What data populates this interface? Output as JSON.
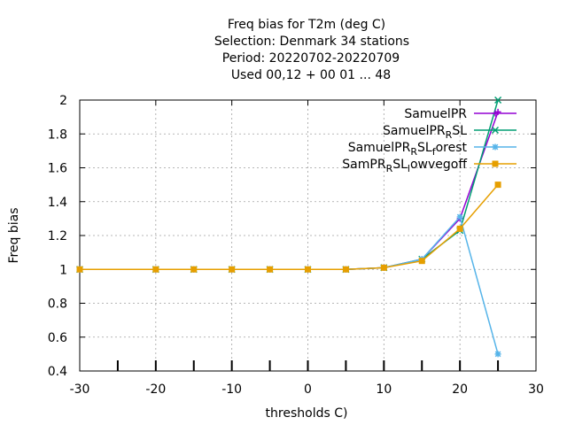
{
  "chart_data": {
    "type": "line",
    "title_lines": [
      "Freq bias  for T2m (deg C)",
      "Selection: Denmark     34 stations",
      "Period: 20220702-20220709",
      "Used  00,12  + 00 01 ... 48"
    ],
    "xlabel": "thresholds C)",
    "ylabel": "Freq bias",
    "xlim": [
      -30,
      30
    ],
    "ylim": [
      0.4,
      2.0
    ],
    "xticks": [
      -30,
      -20,
      -10,
      0,
      10,
      20,
      30
    ],
    "yticks": [
      0.4,
      0.6,
      0.8,
      1.0,
      1.2,
      1.4,
      1.6,
      1.8,
      2.0
    ],
    "xtick_labels": [
      "-30",
      "-20",
      "-10",
      "0",
      "10",
      "20",
      "30"
    ],
    "ytick_labels": [
      "0.4",
      "0.6",
      "0.8",
      "1",
      "1.2",
      "1.4",
      "1.6",
      "1.8",
      "2"
    ],
    "grid": true,
    "legend_position": "top-right",
    "x": [
      -30,
      -20,
      -15,
      -10,
      -5,
      0,
      5,
      10,
      15,
      20,
      25
    ],
    "series": [
      {
        "name_parts": [
          [
            "SamuelPR",
            ""
          ]
        ],
        "color": "#9400d3",
        "marker": "plus",
        "values": [
          1.0,
          1.0,
          1.0,
          1.0,
          1.0,
          1.0,
          1.0,
          1.01,
          1.06,
          1.3,
          1.93
        ]
      },
      {
        "name_parts": [
          [
            "SamuelPR",
            ""
          ],
          [
            "R",
            "sub"
          ],
          [
            "SL",
            ""
          ]
        ],
        "color": "#009e73",
        "marker": "x",
        "values": [
          1.0,
          1.0,
          1.0,
          1.0,
          1.0,
          1.0,
          1.0,
          1.01,
          1.06,
          1.23,
          2.0
        ]
      },
      {
        "name_parts": [
          [
            "SamuelPR",
            ""
          ],
          [
            "R",
            "sub"
          ],
          [
            "SL",
            ""
          ],
          [
            "f",
            "sub"
          ],
          [
            "orest",
            ""
          ]
        ],
        "color": "#56b4e9",
        "marker": "star",
        "values": [
          1.0,
          1.0,
          1.0,
          1.0,
          1.0,
          1.0,
          1.0,
          1.01,
          1.06,
          1.31,
          0.5
        ]
      },
      {
        "name_parts": [
          [
            "SamPR",
            ""
          ],
          [
            "R",
            "sub"
          ],
          [
            "SL",
            ""
          ],
          [
            "l",
            "sub"
          ],
          [
            "owvegoff",
            ""
          ]
        ],
        "color": "#e69f00",
        "marker": "box",
        "values": [
          1.0,
          1.0,
          1.0,
          1.0,
          1.0,
          1.0,
          1.0,
          1.01,
          1.05,
          1.24,
          1.5
        ]
      }
    ]
  }
}
